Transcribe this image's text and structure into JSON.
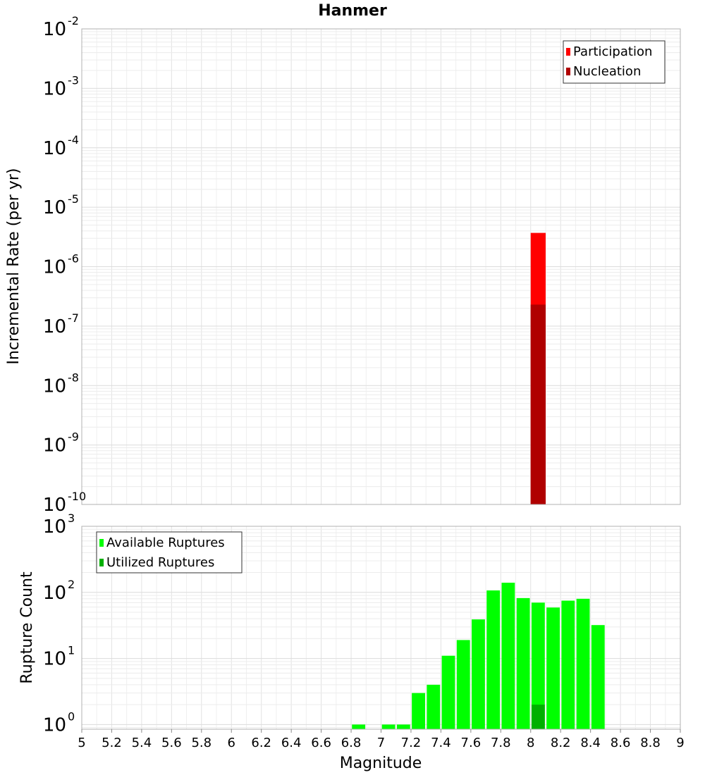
{
  "title": "Hanmer",
  "chart_data": [
    {
      "type": "bar",
      "name": "rate-panel",
      "ylabel": "Incremental Rate (per yr)",
      "yscale": "log",
      "ylim": [
        1e-10,
        0.01
      ],
      "xlim": [
        5,
        9
      ],
      "y_tick_exponents": [
        "-10",
        "-9",
        "-8",
        "-7",
        "-6",
        "-5",
        "-4",
        "-3",
        "-2"
      ],
      "y_tick_base": "10",
      "grid": true,
      "legend_position": "top-right",
      "legend": [
        {
          "label": "Participation",
          "color": "#ff0000"
        },
        {
          "label": "Nucleation",
          "color": "#b00000"
        }
      ],
      "bin_width": 0.1,
      "series": [
        {
          "name": "Participation",
          "color": "#ff0000",
          "x": [
            8.05
          ],
          "values": [
            3.7e-06
          ]
        },
        {
          "name": "Nucleation",
          "color": "#b00000",
          "x": [
            8.05
          ],
          "values": [
            2.3e-07
          ]
        }
      ]
    },
    {
      "type": "bar",
      "name": "count-panel",
      "xlabel": "Magnitude",
      "ylabel": "Rupture Count",
      "yscale": "log",
      "ylim": [
        0.85,
        1000
      ],
      "xlim": [
        5,
        9
      ],
      "y_tick_exponents": [
        "0",
        "1",
        "2",
        "3"
      ],
      "y_tick_base": "10",
      "x_ticks": [
        "5",
        "5.2",
        "5.4",
        "5.6",
        "5.8",
        "6",
        "6.2",
        "6.4",
        "6.6",
        "6.8",
        "7",
        "7.2",
        "7.4",
        "7.6",
        "7.8",
        "8",
        "8.2",
        "8.4",
        "8.6",
        "8.8",
        "9"
      ],
      "grid": true,
      "legend_position": "top-left",
      "legend": [
        {
          "label": "Available Ruptures",
          "color": "#00ff00"
        },
        {
          "label": "Utilized Ruptures",
          "color": "#00b000"
        }
      ],
      "bin_width": 0.1,
      "series": [
        {
          "name": "Available Ruptures",
          "color": "#00ff00",
          "x": [
            6.85,
            7.05,
            7.15,
            7.25,
            7.35,
            7.45,
            7.55,
            7.65,
            7.75,
            7.85,
            7.95,
            8.05,
            8.15,
            8.25,
            8.35,
            8.45
          ],
          "values": [
            1,
            1,
            1,
            3,
            4,
            11,
            19,
            39,
            107,
            140,
            82,
            70,
            59,
            75,
            80,
            32
          ]
        },
        {
          "name": "Utilized Ruptures",
          "color": "#00b000",
          "x": [
            8.05
          ],
          "values": [
            2
          ]
        }
      ]
    }
  ]
}
